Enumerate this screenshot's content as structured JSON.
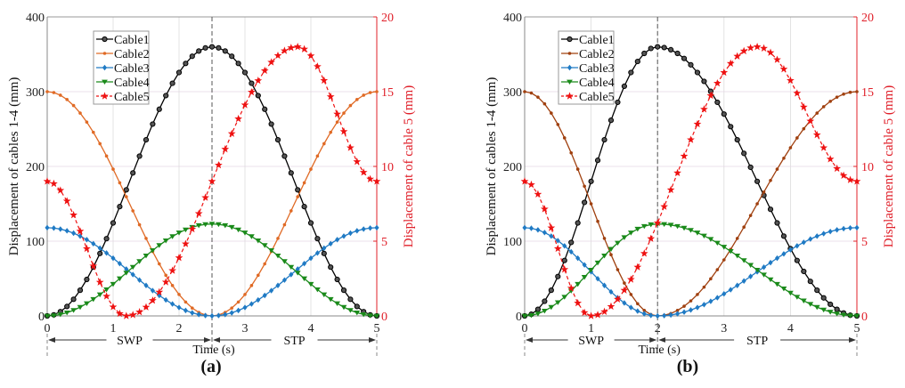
{
  "chart_data": [
    {
      "type": "line",
      "panel_label": "(a)",
      "xlabel": "Time (s)",
      "ylabel": "Displacement of cables 1-4 (mm)",
      "ylabel_right": "Displacement of cable 5 (mm)",
      "xlim": [
        0,
        5
      ],
      "ylim": [
        0,
        400
      ],
      "ylim_right": [
        0,
        20
      ],
      "xticks": [
        "0",
        "1",
        "2",
        "3",
        "4",
        "5"
      ],
      "yticks": [
        "0",
        "100",
        "200",
        "300",
        "400"
      ],
      "yticks_right": [
        "0",
        "5",
        "10",
        "15",
        "20"
      ],
      "grid": true,
      "legend_position": "top-left",
      "phase_boundary": 2.5,
      "phases": [
        {
          "label": "SWP",
          "from": 0,
          "to": 2.5
        },
        {
          "label": "STP",
          "from": 2.5,
          "to": 5
        }
      ],
      "sample_step": 0.1,
      "series": [
        {
          "name": "Cable1",
          "axis": "left",
          "color": "#000000",
          "marker": "circle",
          "dash": false,
          "start": 0,
          "extreme": 360,
          "end": 0,
          "extreme_time": 2.5
        },
        {
          "name": "Cable2",
          "axis": "left",
          "color": "#e06a25",
          "marker": "dot",
          "dash": false,
          "start": 300,
          "extreme": 0,
          "end": 300,
          "extreme_time": 2.5
        },
        {
          "name": "Cable3",
          "axis": "left",
          "color": "#1f7ac4",
          "marker": "diamond",
          "dash": false,
          "start": 118,
          "extreme": 0,
          "end": 118,
          "extreme_time": 2.5
        },
        {
          "name": "Cable4",
          "axis": "left",
          "color": "#1a8a1a",
          "marker": "triangle-down",
          "dash": false,
          "start": 0,
          "extreme": 123,
          "end": 0,
          "extreme_time": 2.5
        },
        {
          "name": "Cable5",
          "axis": "right",
          "color": "#ee1111",
          "marker": "star",
          "dash": true,
          "start": 9,
          "min": 0,
          "min_time": 1.2,
          "max": 18,
          "max_time": 3.8,
          "end": 9
        }
      ]
    },
    {
      "type": "line",
      "panel_label": "(b)",
      "xlabel": "Time (s)",
      "ylabel": "Displacement of cables 1-4 (mm)",
      "ylabel_right": "Displacement of cable 5 (mm)",
      "xlim": [
        0,
        5
      ],
      "ylim": [
        0,
        400
      ],
      "ylim_right": [
        0,
        20
      ],
      "xticks": [
        "0",
        "1",
        "2",
        "3",
        "4",
        "5"
      ],
      "yticks": [
        "0",
        "100",
        "200",
        "300",
        "400"
      ],
      "yticks_right": [
        "0",
        "5",
        "10",
        "15",
        "20"
      ],
      "grid": true,
      "legend_position": "top-left",
      "phase_boundary": 2.0,
      "phases": [
        {
          "label": "SWP",
          "from": 0,
          "to": 2.0
        },
        {
          "label": "STP",
          "from": 2.0,
          "to": 5
        }
      ],
      "sample_step": 0.1,
      "series": [
        {
          "name": "Cable1",
          "axis": "left",
          "color": "#000000",
          "marker": "circle",
          "dash": false,
          "start": 0,
          "extreme": 360,
          "end": 0,
          "extreme_time": 2.0
        },
        {
          "name": "Cable2",
          "axis": "left",
          "color": "#a0400f",
          "marker": "dot",
          "dash": false,
          "start": 300,
          "extreme": 0,
          "end": 300,
          "extreme_time": 2.0
        },
        {
          "name": "Cable3",
          "axis": "left",
          "color": "#1f7ac4",
          "marker": "diamond",
          "dash": false,
          "start": 118,
          "extreme": 0,
          "end": 118,
          "extreme_time": 2.0
        },
        {
          "name": "Cable4",
          "axis": "left",
          "color": "#1a8a1a",
          "marker": "triangle-down",
          "dash": false,
          "start": 0,
          "extreme": 123,
          "end": 0,
          "extreme_time": 2.0
        },
        {
          "name": "Cable5",
          "axis": "right",
          "color": "#ee1111",
          "marker": "star",
          "dash": true,
          "start": 9,
          "min": 0,
          "min_time": 1.0,
          "max": 18,
          "max_time": 3.5,
          "end": 9
        }
      ]
    }
  ],
  "labels": {
    "legend": [
      "Cable1",
      "Cable2",
      "Cable3",
      "Cable4",
      "Cable5"
    ],
    "swp": "SWP",
    "stp": "STP",
    "time": "Time (s)"
  }
}
